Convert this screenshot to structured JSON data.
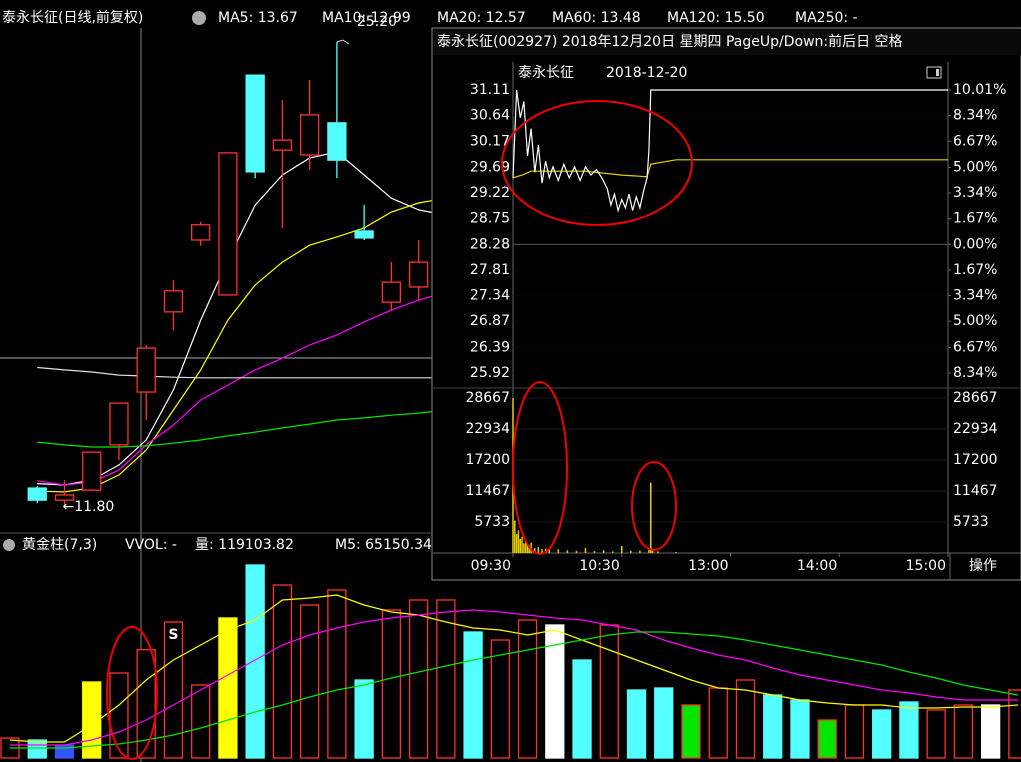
{
  "main": {
    "title": "泰永长征(日线,前复权)",
    "ma_legend": [
      {
        "text": "MA5: 13.67",
        "color": "#ffffff",
        "values": [
          12.42,
          12.38,
          12.52,
          12.96,
          13.68,
          15.13,
          17.15,
          18.89,
          20.48,
          21.35,
          21.84,
          22.02,
          21.35,
          20.68,
          20.34,
          20.19
        ]
      },
      {
        "text": "MA10: 12.99",
        "color": "#ffff00",
        "values": [
          12.2,
          12.18,
          12.29,
          12.67,
          13.39,
          14.55,
          15.71,
          17.15,
          18.17,
          18.83,
          19.32,
          19.56,
          19.82,
          20.28,
          20.54,
          20.68
        ]
      },
      {
        "text": "MA20: 12.57",
        "color": "#ff00ff",
        "values": [
          12.5,
          12.38,
          12.46,
          12.81,
          13.54,
          14.11,
          14.84,
          15.27,
          15.71,
          16.05,
          16.43,
          16.72,
          17.1,
          17.44,
          17.73,
          17.96
        ]
      },
      {
        "text": "MA60: 13.48",
        "color": "#00e600",
        "values": [
          13.62,
          13.54,
          13.48,
          13.48,
          13.51,
          13.59,
          13.68,
          13.8,
          13.91,
          14.03,
          14.14,
          14.26,
          14.32,
          14.4,
          14.46,
          14.55
        ]
      },
      {
        "text": "MA120: 15.50",
        "color": "#e0e0e0",
        "values": [
          15.78,
          15.71,
          15.65,
          15.56,
          15.53,
          15.5,
          15.48,
          15.48,
          15.48,
          15.48,
          15.48,
          15.48,
          15.48,
          15.48,
          15.48,
          15.48
        ]
      },
      {
        "text": "MA250: -",
        "color": "#2020ff"
      }
    ],
    "high_mark": {
      "value": 25.2,
      "label": "25.20"
    },
    "low_mark": {
      "value": 11.8,
      "label": "←11.80"
    },
    "up_color": "#ff3232",
    "down_color": "#54ffff",
    "candles": {
      "open": [
        12.29,
        11.94,
        12.23,
        13.54,
        15.07,
        17.39,
        19.47,
        17.88,
        24.24,
        22.07,
        21.93,
        22.86,
        19.73,
        17.67,
        18.11
      ],
      "close": [
        11.94,
        12.09,
        13.33,
        14.75,
        16.34,
        18.0,
        19.91,
        21.99,
        21.44,
        22.36,
        23.09,
        21.78,
        19.53,
        18.25,
        18.83
      ],
      "high": [
        12.35,
        12.52,
        13.33,
        14.75,
        16.43,
        18.31,
        20.0,
        22.0,
        24.24,
        23.52,
        24.1,
        25.2,
        20.48,
        18.83,
        19.47
      ],
      "low": [
        11.85,
        11.8,
        12.2,
        13.1,
        14.26,
        16.86,
        19.3,
        17.88,
        21.26,
        19.82,
        21.5,
        21.26,
        19.47,
        17.44,
        17.73
      ]
    }
  },
  "volume": {
    "header": [
      {
        "text": "黄金柱(7,3)",
        "color": "#ffffff"
      },
      {
        "text": "VVOL: -",
        "color": "#ffffff"
      },
      {
        "text": "量: 119103.82",
        "color": "#ffff00"
      },
      {
        "text": "M5: 65150.34",
        "color": "#ffffff"
      }
    ],
    "signal": "S",
    "hollow_color": "#ff3232",
    "bars": [
      22000,
      19800,
      14300,
      83600,
      93500,
      119104,
      149600,
      80300,
      154000,
      212300,
      190300,
      168300,
      184800,
      85800,
      162800,
      173800,
      173800,
      138600,
      129800,
      151800,
      146300,
      107800,
      146300,
      74800,
      77000,
      58300,
      77000,
      85800,
      69300,
      63800,
      41800,
      58300,
      52800,
      61600,
      52800,
      58300,
      58300,
      74800
    ],
    "bar_colors": [
      "#ff3232",
      "#54ffff",
      "#3355ff",
      "#ffff00",
      "#ff3232",
      "#ff3232",
      "#ff3232",
      "#ff3232",
      "#ffff00",
      "#54ffff",
      "#ff3232",
      "#ff3232",
      "#ff3232",
      "#54ffff",
      "#ff3232",
      "#ff3232",
      "#ff3232",
      "#54ffff",
      "#ff3232",
      "#ff3232",
      "#ffffff",
      "#54ffff",
      "#ff3232",
      "#54ffff",
      "#54ffff",
      "#00e600",
      "#ff3232",
      "#ff3232",
      "#54ffff",
      "#54ffff",
      "#00e600",
      "#ff3232",
      "#54ffff",
      "#54ffff",
      "#ff3232",
      "#ff3232",
      "#ffffff",
      "#ff3232"
    ],
    "lines": [
      {
        "color": "#ffff00",
        "values": [
          19800,
          17600,
          17600,
          36300,
          58300,
          85800,
          107800,
          124300,
          140800,
          151800,
          173800,
          176000,
          179300,
          168300,
          160600,
          157300,
          149600,
          143000,
          140800,
          135300,
          140800,
          129800,
          118800,
          107800,
          96800,
          85800,
          77000,
          74800,
          69300,
          63800,
          60500,
          58300,
          58300,
          55000,
          55000,
          56100,
          56100,
          58300
        ]
      },
      {
        "color": "#ff00ff",
        "values": [
          14300,
          14300,
          14300,
          19800,
          28600,
          41800,
          58300,
          74800,
          91300,
          107800,
          124300,
          135300,
          143000,
          149600,
          154000,
          157300,
          160600,
          162800,
          160600,
          157300,
          154000,
          151800,
          146300,
          140800,
          129800,
          121000,
          113300,
          107800,
          99000,
          91300,
          85800,
          80300,
          74800,
          71500,
          67100,
          63800,
          63800,
          63800
        ]
      },
      {
        "color": "#00e600",
        "values": [
          11000,
          11000,
          11000,
          13200,
          15400,
          19800,
          25300,
          33000,
          41800,
          50600,
          58300,
          67100,
          74800,
          80300,
          88000,
          94600,
          101200,
          107800,
          113300,
          118800,
          124300,
          129800,
          135300,
          138600,
          138600,
          136400,
          134200,
          129800,
          124300,
          118800,
          113300,
          107800,
          102300,
          94600,
          88000,
          80300,
          74800,
          69300
        ]
      }
    ]
  },
  "popup": {
    "title": "泰永长征(002927) 2018年12月20日 星期四 PageUp/Down:前后日 空格",
    "name": "泰永长征",
    "date": "2018-12-20",
    "ylim": [
      25.92,
      31.11
    ],
    "price_ticks": [
      31.11,
      30.64,
      30.17,
      29.69,
      29.22,
      28.75,
      28.28,
      27.81,
      27.34,
      26.87,
      26.39,
      25.92
    ],
    "pct_ticks": [
      {
        "value": 10.01,
        "label": "10.01%"
      },
      {
        "value": 8.34,
        "label": "8.34%"
      },
      {
        "value": 6.67,
        "label": "6.67%"
      },
      {
        "value": 5,
        "label": "5.00%"
      },
      {
        "value": 3.34,
        "label": "3.34%"
      },
      {
        "value": 1.67,
        "label": "1.67%"
      },
      {
        "value": 0,
        "label": "0.00%"
      },
      {
        "value": -1.67,
        "label": "1.67%"
      },
      {
        "value": -3.34,
        "label": "3.34%"
      },
      {
        "value": -5,
        "label": "5.00%"
      },
      {
        "value": -6.67,
        "label": "6.67%"
      },
      {
        "value": -8.34,
        "label": "8.34%"
      }
    ],
    "vlim": [
      0,
      28667
    ],
    "volume_ticks": [
      28667,
      22934,
      17200,
      11467,
      5733
    ],
    "xlim": [
      0,
      240
    ],
    "time_ticks": [
      {
        "value": 0,
        "label": "09:30"
      },
      {
        "value": 60,
        "label": "10:30"
      },
      {
        "value": 120,
        "label": "13:00"
      },
      {
        "value": 180,
        "label": "14:00"
      },
      {
        "value": 240,
        "label": "15:00"
      }
    ],
    "price": {
      "color": "#ffffff",
      "x": [
        0,
        2,
        4,
        6,
        8,
        10,
        12,
        14,
        16,
        18,
        20,
        22,
        25,
        28,
        31,
        34,
        37,
        40,
        43,
        46,
        49,
        52,
        54,
        56,
        58,
        60,
        62,
        64,
        66,
        68,
        70,
        72,
        74,
        75,
        76,
        240
      ],
      "values": [
        29.5,
        31.11,
        30.6,
        30.9,
        29.9,
        30.4,
        29.6,
        30.1,
        29.4,
        29.8,
        29.5,
        29.7,
        29.45,
        29.75,
        29.5,
        29.7,
        29.45,
        29.7,
        29.55,
        29.65,
        29.5,
        29.3,
        29.0,
        29.2,
        28.9,
        29.1,
        28.95,
        29.2,
        28.9,
        29.15,
        28.95,
        29.25,
        29.5,
        30.0,
        31.11,
        31.11
      ]
    },
    "avg": {
      "color": "#e6d200",
      "x": [
        0,
        5,
        10,
        20,
        40,
        60,
        74,
        76,
        90,
        240
      ],
      "values": [
        29.5,
        29.55,
        29.62,
        29.62,
        29.62,
        29.55,
        29.52,
        29.75,
        29.83,
        29.83
      ]
    },
    "volume": {
      "color": "#e6d200",
      "x": [
        0,
        1,
        2,
        3,
        4,
        5,
        6,
        7,
        8,
        9,
        10,
        12,
        14,
        16,
        18,
        20,
        25,
        30,
        35,
        40,
        45,
        50,
        55,
        60,
        65,
        70,
        75,
        76,
        77,
        80,
        90
      ],
      "values": [
        28667,
        6000,
        3500,
        4200,
        2600,
        3000,
        1800,
        2100,
        1500,
        1200,
        1900,
        900,
        1100,
        700,
        800,
        600,
        700,
        500,
        400,
        900,
        350,
        500,
        300,
        1300,
        400,
        450,
        600,
        13000,
        800,
        300,
        200
      ]
    },
    "button": "操作"
  }
}
